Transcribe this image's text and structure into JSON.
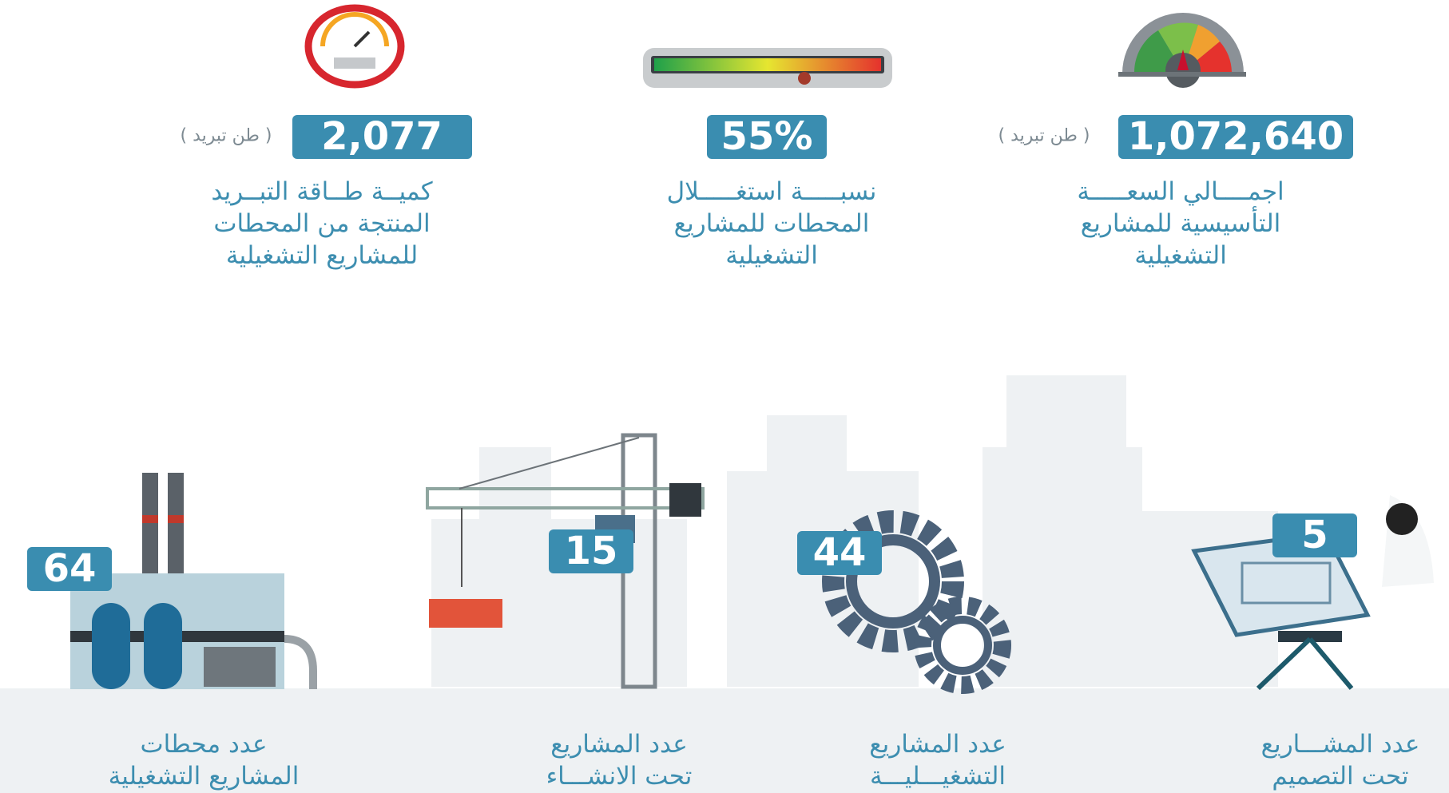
{
  "top_stats": [
    {
      "value": "1,072,640",
      "unit": "( طن تبريد )",
      "label": [
        "اجمــــالي السعـــــة",
        "التأسيسية للمشاريع",
        "التشغيلية"
      ]
    },
    {
      "value": "55%",
      "label": [
        "نسبـــــة استغـــــلال",
        "المحطات للمشاريع",
        "التشغيلية"
      ]
    },
    {
      "value": "2,077",
      "unit": "( طن تبريد )",
      "label": [
        "كميــة طــاقة التبــريد",
        "المنتجة من المحطات",
        "للمشاريع التشغيلية"
      ]
    }
  ],
  "bottom_stats": [
    {
      "value": "5",
      "label": [
        "عدد المشـــاريع",
        "تحت التصميم"
      ]
    },
    {
      "value": "44",
      "label": [
        "عدد المشاريع",
        "التشغيـــليـــة"
      ]
    },
    {
      "value": "15",
      "label": [
        "عدد المشاريع",
        "تحت الانشـــاء"
      ]
    },
    {
      "value": "64",
      "label": [
        "عدد محطات",
        "المشاريع التشغيلية"
      ]
    }
  ]
}
